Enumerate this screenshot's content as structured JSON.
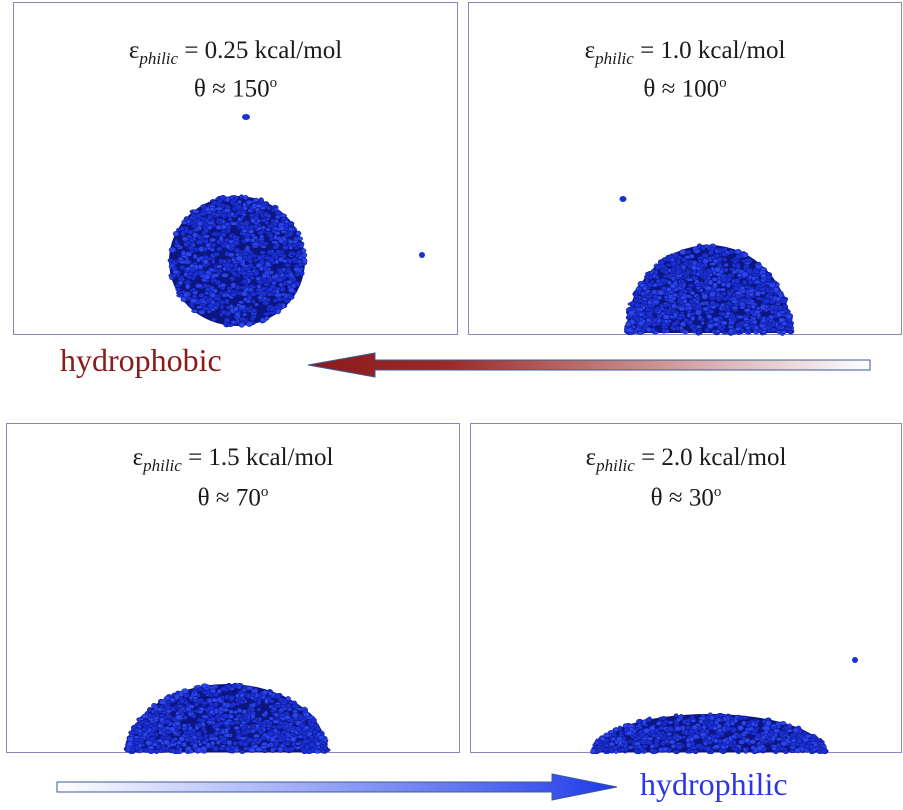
{
  "panels": [
    {
      "eps_symbol": "ε",
      "eps_sub": "philic",
      "eps_value": " = 0.25 kcal/mol",
      "theta_text": "θ ≈ 150",
      "degree": "o"
    },
    {
      "eps_symbol": "ε",
      "eps_sub": "philic",
      "eps_value": " = 1.0 kcal/mol",
      "theta_text": "θ ≈ 100",
      "degree": "o"
    },
    {
      "eps_symbol": "ε",
      "eps_sub": "philic",
      "eps_value": " = 1.5 kcal/mol",
      "theta_text": "θ ≈ 70",
      "degree": "o"
    },
    {
      "eps_symbol": "ε",
      "eps_sub": "philic",
      "eps_value": " = 2.0 kcal/mol",
      "theta_text": "θ ≈ 30",
      "degree": "o"
    }
  ],
  "labels": {
    "hydrophobic": "hydrophobic",
    "hydrophilic": "hydrophilic"
  },
  "colors": {
    "droplet": "#1a2fd6",
    "droplet_dark": "#0c1680",
    "hydrophobic": "#8b1a1a",
    "hydrophilic": "#2b36e6",
    "panel_border": "#8c87b8"
  }
}
